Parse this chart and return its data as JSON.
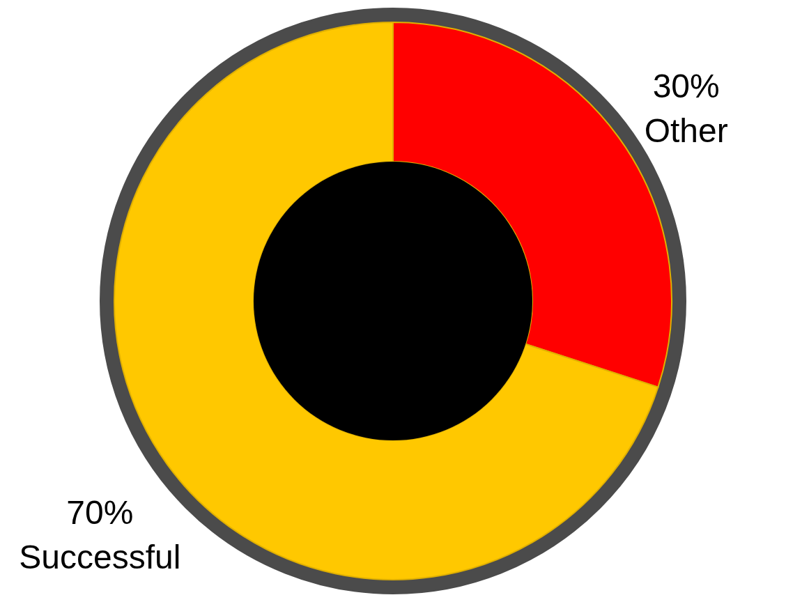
{
  "chart_data": {
    "type": "donut",
    "categories": [
      "Other",
      "Successful"
    ],
    "values": [
      30,
      70
    ],
    "colors": [
      "#ff0000",
      "#ffc800"
    ],
    "value_labels": [
      "30%",
      "70%"
    ]
  }
}
